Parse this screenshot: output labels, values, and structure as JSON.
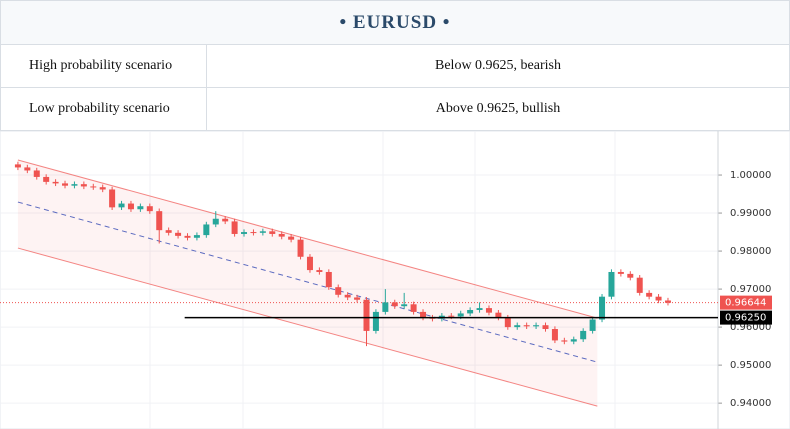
{
  "header": {
    "title": "• EURUSD •"
  },
  "table": {
    "rows": [
      [
        "High probability scenario",
        "Below 0.9625, bearish"
      ],
      [
        "Low probability scenario",
        "Above 0.9625, bullish"
      ]
    ]
  },
  "chart_data": {
    "type": "candlestick",
    "up_color": "#26a69a",
    "down_color": "#ef5350",
    "x": [
      0,
      1,
      2,
      3,
      4,
      5,
      6,
      7,
      8,
      9,
      10,
      11,
      12,
      13,
      14,
      15,
      16,
      17,
      18,
      19,
      20,
      21,
      22,
      23,
      24,
      25,
      26,
      27,
      28,
      29,
      30,
      31,
      32,
      33,
      34,
      35,
      36,
      37,
      38,
      39,
      40,
      41,
      42,
      43,
      44,
      45,
      46,
      47,
      48,
      49,
      50,
      51,
      52,
      53,
      54,
      55,
      56,
      57,
      58,
      59,
      60,
      61,
      62,
      63,
      64,
      65,
      66,
      67,
      68,
      69
    ],
    "open": [
      1.0028,
      1.002,
      1.0012,
      0.9995,
      0.9982,
      0.9978,
      0.9972,
      0.9976,
      0.997,
      0.9968,
      0.9962,
      0.9915,
      0.9925,
      0.991,
      0.9918,
      0.9905,
      0.9855,
      0.9848,
      0.984,
      0.9835,
      0.9842,
      0.987,
      0.9885,
      0.9878,
      0.9845,
      0.985,
      0.9848,
      0.9852,
      0.9845,
      0.9838,
      0.983,
      0.9785,
      0.975,
      0.9745,
      0.9705,
      0.9685,
      0.9678,
      0.9672,
      0.959,
      0.964,
      0.9665,
      0.9655,
      0.966,
      0.964,
      0.9625,
      0.9622,
      0.963,
      0.9628,
      0.9636,
      0.9645,
      0.965,
      0.9638,
      0.9625,
      0.96,
      0.9605,
      0.9602,
      0.9605,
      0.9595,
      0.9565,
      0.9562,
      0.9568,
      0.959,
      0.962,
      0.968,
      0.9745,
      0.974,
      0.973,
      0.969,
      0.968,
      0.967
    ],
    "high": [
      1.0035,
      1.0027,
      1.0019,
      1.0002,
      0.9989,
      0.9985,
      0.9983,
      0.9983,
      0.9977,
      0.9975,
      0.9969,
      0.9932,
      0.9932,
      0.9925,
      0.9925,
      0.9912,
      0.9862,
      0.9855,
      0.9847,
      0.9849,
      0.9877,
      0.9905,
      0.9892,
      0.9885,
      0.9857,
      0.9857,
      0.9859,
      0.9859,
      0.9852,
      0.9845,
      0.9837,
      0.9792,
      0.9757,
      0.9752,
      0.9712,
      0.9692,
      0.9685,
      0.9679,
      0.9647,
      0.97,
      0.9672,
      0.969,
      0.9667,
      0.9647,
      0.9632,
      0.9637,
      0.9637,
      0.9643,
      0.9652,
      0.9665,
      0.9657,
      0.9645,
      0.9632,
      0.9612,
      0.9612,
      0.9612,
      0.9612,
      0.9602,
      0.9572,
      0.9575,
      0.9597,
      0.9627,
      0.9687,
      0.9752,
      0.9752,
      0.9747,
      0.9737,
      0.9697,
      0.9687,
      0.9677
    ],
    "low": [
      1.0013,
      1.0005,
      0.9988,
      0.9975,
      0.9971,
      0.9965,
      0.9965,
      0.9963,
      0.9961,
      0.9955,
      0.9908,
      0.9908,
      0.9903,
      0.9903,
      0.9898,
      0.982,
      0.9841,
      0.9833,
      0.9828,
      0.9828,
      0.9835,
      0.9863,
      0.9871,
      0.9838,
      0.9838,
      0.9841,
      0.9841,
      0.9838,
      0.9831,
      0.9823,
      0.9778,
      0.9743,
      0.9738,
      0.9698,
      0.9678,
      0.9671,
      0.9665,
      0.955,
      0.9583,
      0.9633,
      0.9648,
      0.9648,
      0.9633,
      0.9618,
      0.9615,
      0.9615,
      0.9621,
      0.9621,
      0.9629,
      0.9638,
      0.9631,
      0.9618,
      0.9593,
      0.9593,
      0.9595,
      0.9595,
      0.9588,
      0.9558,
      0.9555,
      0.9555,
      0.9561,
      0.9583,
      0.9613,
      0.9673,
      0.9733,
      0.9723,
      0.9683,
      0.9673,
      0.9663,
      0.9657
    ],
    "close": [
      1.002,
      1.0012,
      0.9995,
      0.9982,
      0.9978,
      0.9972,
      0.9976,
      0.997,
      0.9968,
      0.9962,
      0.9915,
      0.9925,
      0.991,
      0.9918,
      0.9905,
      0.9855,
      0.9848,
      0.984,
      0.9835,
      0.9842,
      0.987,
      0.9885,
      0.9878,
      0.9845,
      0.985,
      0.9848,
      0.9852,
      0.9845,
      0.9838,
      0.983,
      0.9785,
      0.975,
      0.9745,
      0.9705,
      0.9685,
      0.9678,
      0.9672,
      0.959,
      0.964,
      0.9665,
      0.9655,
      0.966,
      0.964,
      0.9625,
      0.9622,
      0.963,
      0.9628,
      0.9636,
      0.9645,
      0.965,
      0.9638,
      0.9625,
      0.96,
      0.9605,
      0.9602,
      0.9605,
      0.9595,
      0.9565,
      0.9562,
      0.9568,
      0.959,
      0.962,
      0.968,
      0.9745,
      0.974,
      0.973,
      0.969,
      0.968,
      0.967,
      0.9664
    ],
    "channel": {
      "x": [
        0,
        61.5
      ],
      "upper": [
        1.00395,
        0.96237
      ],
      "mid": [
        0.99289,
        0.95079
      ],
      "lower": [
        0.98079,
        0.93921
      ],
      "color": "#ef5350",
      "mid_color": "#5c6bc0"
    },
    "level": {
      "value": 0.9625,
      "label": "0.96250",
      "x_start": 17.7,
      "color": "#000000"
    },
    "last_price": {
      "value": 0.96644,
      "label": "0.96644",
      "color": "#ef5350"
    },
    "xlim": [
      -0.5,
      73.8
    ],
    "ylim": [
      0.9332,
      1.0079
    ],
    "yticks": [
      {
        "value": 1.0,
        "label": "1.00000"
      },
      {
        "value": 0.99,
        "label": "0.99000"
      },
      {
        "value": 0.98,
        "label": "0.98000"
      },
      {
        "value": 0.97,
        "label": "0.97000"
      },
      {
        "value": 0.96,
        "label": "0.96000"
      },
      {
        "value": 0.95,
        "label": "0.95000"
      },
      {
        "value": 0.94,
        "label": "0.94000"
      }
    ],
    "grid": true
  }
}
